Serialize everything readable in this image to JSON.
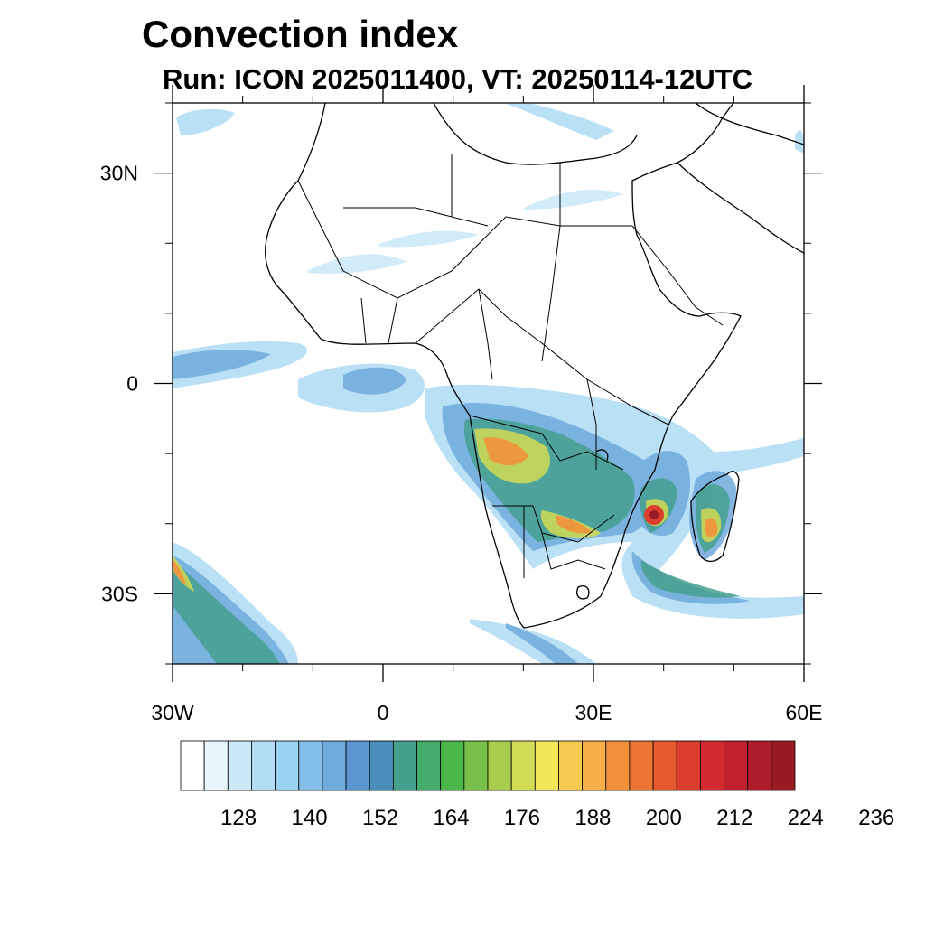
{
  "title": "Convection index",
  "subtitle": "Run: ICON 2025011400,  VT: 20250114-12UTC",
  "map": {
    "lon_range": [
      -30,
      60
    ],
    "lat_range": [
      -40,
      40
    ],
    "x_ticks": [
      {
        "value": -30,
        "label": "30W"
      },
      {
        "value": 0,
        "label": "0"
      },
      {
        "value": 30,
        "label": "30E"
      },
      {
        "value": 60,
        "label": "60E"
      }
    ],
    "y_ticks": [
      {
        "value": 30,
        "label": "30N"
      },
      {
        "value": 0,
        "label": "0"
      },
      {
        "value": -30,
        "label": "30S"
      }
    ],
    "region": "Africa"
  },
  "colorbar": {
    "colors": [
      "#ffffff",
      "#e8f5fc",
      "#cde9f8",
      "#b3ddf5",
      "#99d3f3",
      "#83bfe8",
      "#6faadc",
      "#5b96d0",
      "#4a8db8",
      "#45a08e",
      "#44ab6d",
      "#4cb64a",
      "#77c04a",
      "#a8cd4e",
      "#d2dc54",
      "#f1e658",
      "#f7cb50",
      "#f7ae46",
      "#f2913c",
      "#ec7434",
      "#e45a2e",
      "#dc3d2d",
      "#d22a2f",
      "#c1212f",
      "#ae1b2b",
      "#981a24"
    ],
    "labels": [
      "128",
      "140",
      "152",
      "164",
      "176",
      "188",
      "200",
      "212",
      "224",
      "236"
    ]
  }
}
